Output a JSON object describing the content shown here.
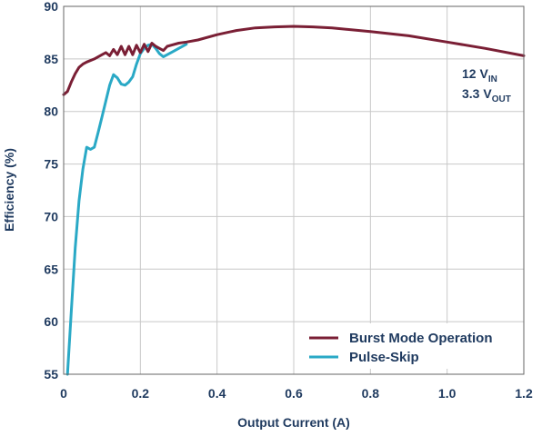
{
  "chart_data": {
    "type": "line",
    "xlabel": "Output Current (A)",
    "ylabel": "Efficiency (%)",
    "xlim": [
      0,
      1.2
    ],
    "ylim": [
      55,
      90
    ],
    "x_ticks": [
      "0",
      "0.2",
      "0.4",
      "0.6",
      "0.8",
      "1.0",
      "1.2"
    ],
    "y_ticks": [
      "55",
      "60",
      "65",
      "70",
      "75",
      "80",
      "85",
      "90"
    ],
    "grid": true,
    "legend_position": "bottom-right",
    "annotation": {
      "line1_main": "12 V",
      "line1_sub": "IN",
      "line2_main": "3.3 V",
      "line2_sub": "OUT"
    },
    "series": [
      {
        "name": "Burst Mode Operation",
        "color": "#7a1f35",
        "x": [
          0.0,
          0.01,
          0.02,
          0.03,
          0.04,
          0.05,
          0.06,
          0.08,
          0.1,
          0.11,
          0.12,
          0.13,
          0.14,
          0.15,
          0.16,
          0.17,
          0.18,
          0.19,
          0.2,
          0.21,
          0.22,
          0.23,
          0.24,
          0.25,
          0.26,
          0.27,
          0.28,
          0.3,
          0.32,
          0.35,
          0.4,
          0.45,
          0.5,
          0.55,
          0.6,
          0.65,
          0.7,
          0.8,
          0.9,
          1.0,
          1.1,
          1.2
        ],
        "y": [
          81.6,
          81.9,
          82.8,
          83.6,
          84.2,
          84.5,
          84.7,
          85.0,
          85.4,
          85.6,
          85.3,
          85.9,
          85.4,
          86.2,
          85.4,
          86.2,
          85.4,
          86.3,
          85.6,
          86.4,
          85.7,
          86.5,
          86.2,
          86.0,
          85.8,
          86.2,
          86.3,
          86.5,
          86.6,
          86.8,
          87.3,
          87.7,
          87.95,
          88.05,
          88.1,
          88.05,
          87.95,
          87.6,
          87.2,
          86.6,
          86.0,
          85.3
        ]
      },
      {
        "name": "Pulse-Skip",
        "color": "#2aa9c6",
        "x": [
          0.01,
          0.02,
          0.03,
          0.04,
          0.05,
          0.06,
          0.07,
          0.08,
          0.09,
          0.1,
          0.11,
          0.12,
          0.13,
          0.14,
          0.15,
          0.16,
          0.17,
          0.18,
          0.19,
          0.2,
          0.21,
          0.22,
          0.23,
          0.24,
          0.25,
          0.26,
          0.27,
          0.28,
          0.3,
          0.32
        ],
        "y": [
          55.0,
          61.0,
          67.0,
          71.5,
          74.5,
          76.6,
          76.4,
          76.6,
          78.0,
          79.5,
          81.0,
          82.5,
          83.5,
          83.2,
          82.6,
          82.5,
          82.8,
          83.3,
          84.5,
          85.5,
          86.0,
          86.3,
          86.4,
          86.0,
          85.5,
          85.2,
          85.4,
          85.6,
          86.0,
          86.4
        ]
      }
    ]
  }
}
